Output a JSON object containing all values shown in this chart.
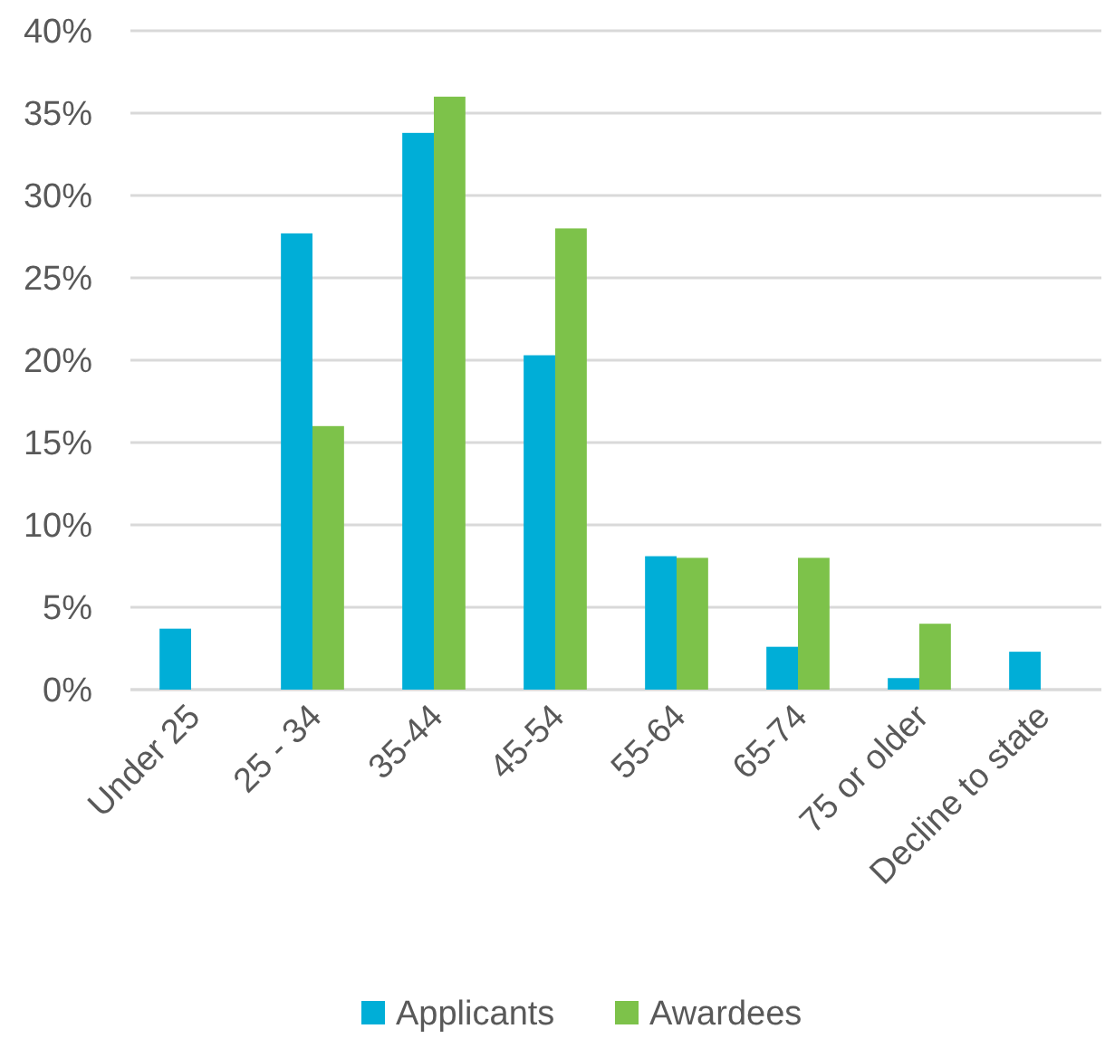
{
  "chart_data": {
    "type": "bar",
    "categories": [
      "Under 25",
      "25 - 34",
      "35-44",
      "45-54",
      "55-64",
      "65-74",
      "75 or older",
      "Decline to state"
    ],
    "series": [
      {
        "name": "Applicants",
        "color": "#00aed7",
        "values": [
          3.7,
          27.7,
          33.8,
          20.3,
          8.1,
          2.6,
          0.7,
          2.3
        ]
      },
      {
        "name": "Awardees",
        "color": "#7dc24a",
        "values": [
          null,
          16,
          36,
          28,
          8,
          8,
          4,
          null
        ]
      }
    ],
    "ylim": [
      0,
      40
    ],
    "yticks": [
      {
        "value": 0,
        "label": "0%"
      },
      {
        "value": 5,
        "label": "5%"
      },
      {
        "value": 10,
        "label": "10%"
      },
      {
        "value": 15,
        "label": "15%"
      },
      {
        "value": 20,
        "label": "20%"
      },
      {
        "value": 25,
        "label": "25%"
      },
      {
        "value": 30,
        "label": "30%"
      },
      {
        "value": 35,
        "label": "35%"
      },
      {
        "value": 40,
        "label": "40%"
      }
    ],
    "grid": "y",
    "legend": "bottom"
  }
}
